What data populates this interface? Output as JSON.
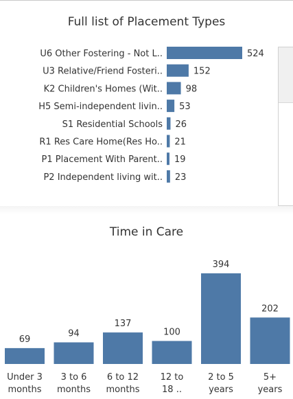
{
  "chart_data": [
    {
      "type": "bar",
      "orientation": "horizontal",
      "title": "Full list of Placement Types",
      "categories": [
        "U6 Other Fostering - Not L..",
        "U3 Relative/Friend Fosteri..",
        "K2 Children's Homes (Wit..",
        "H5 Semi-independent livin..",
        "S1 Residential Schools",
        "R1 Res Care Home(Res Ho..",
        "P1 Placement With Parent..",
        "P2 Independent living wit.."
      ],
      "values": [
        524,
        152,
        98,
        53,
        26,
        21,
        19,
        23
      ],
      "bar_color": "#4e79a7",
      "xlim": [
        0,
        530
      ]
    },
    {
      "type": "bar",
      "orientation": "vertical",
      "title": "Time in Care",
      "categories": [
        [
          "Under 3",
          "months"
        ],
        [
          "3 to 6",
          "months"
        ],
        [
          "6 to 12",
          "months"
        ],
        [
          "12 to",
          "18 .."
        ],
        [
          "2 to 5",
          "years"
        ],
        [
          "5+",
          "years"
        ]
      ],
      "values": [
        69,
        94,
        137,
        100,
        394,
        202
      ],
      "bar_color": "#4e79a7",
      "ylim": [
        0,
        400
      ],
      "grid": false
    }
  ]
}
